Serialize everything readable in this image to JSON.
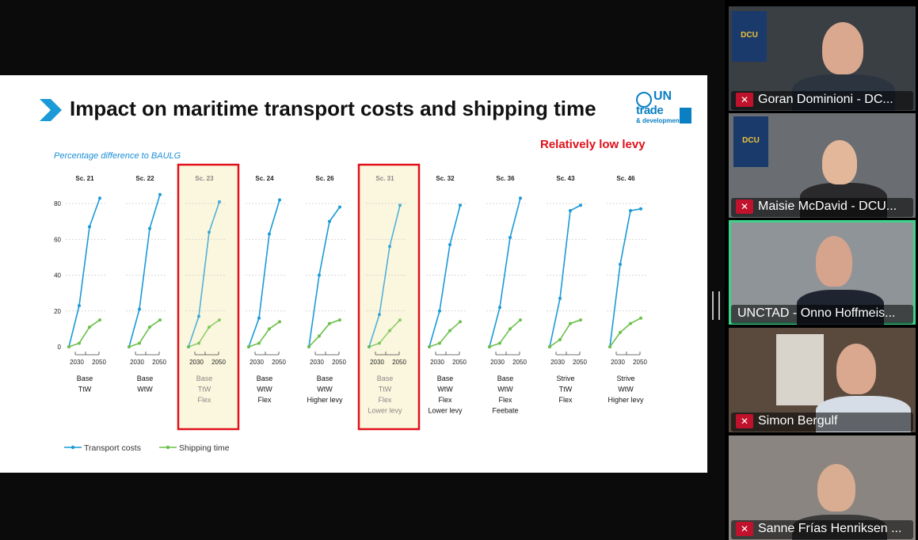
{
  "slide": {
    "title": "Impact on maritime transport costs and shipping time",
    "subtitle": "Percentage difference to BAULG",
    "levy_label": "Relatively low levy",
    "logo": {
      "line1": "UN",
      "line2": "trade",
      "line3": "& development"
    },
    "legend": {
      "transport": "Transport costs",
      "shipping": "Shipping time"
    },
    "highlight_color": "#e0101a",
    "transport_color": "#1a9ad6",
    "shipping_color": "#6cc04a"
  },
  "chart_data": {
    "type": "line",
    "ylim": [
      0,
      85
    ],
    "yticks": [
      "80",
      "60",
      "40",
      "20",
      "0"
    ],
    "x": [
      "",
      "2030",
      "",
      "2050"
    ],
    "xtick_labels": [
      "2030",
      "2050"
    ],
    "panels": [
      {
        "scenario": "Sc. 21",
        "labels": [
          "Base",
          "TtW"
        ],
        "highlight": false,
        "transport": [
          0,
          23,
          67,
          83
        ],
        "shipping": [
          0,
          2,
          11,
          15
        ]
      },
      {
        "scenario": "Sc. 22",
        "labels": [
          "Base",
          "WtW"
        ],
        "highlight": false,
        "transport": [
          0,
          21,
          66,
          85
        ],
        "shipping": [
          0,
          2,
          11,
          15
        ]
      },
      {
        "scenario": "Sc. 23",
        "labels": [
          "Base",
          "TtW",
          "Flex"
        ],
        "highlight": true,
        "transport": [
          0,
          17,
          64,
          81
        ],
        "shipping": [
          0,
          2,
          11,
          15
        ]
      },
      {
        "scenario": "Sc. 24",
        "labels": [
          "Base",
          "WtW",
          "Flex"
        ],
        "highlight": false,
        "transport": [
          0,
          16,
          63,
          82
        ],
        "shipping": [
          0,
          2,
          10,
          14
        ]
      },
      {
        "scenario": "Sc. 26",
        "labels": [
          "Base",
          "WtW",
          "Higher levy"
        ],
        "highlight": false,
        "transport": [
          0,
          40,
          70,
          78
        ],
        "shipping": [
          0,
          6,
          13,
          15
        ]
      },
      {
        "scenario": "Sc. 31",
        "labels": [
          "Base",
          "TtW",
          "Flex",
          "Lower levy"
        ],
        "highlight": true,
        "transport": [
          0,
          18,
          56,
          79
        ],
        "shipping": [
          0,
          2,
          9,
          15
        ]
      },
      {
        "scenario": "Sc. 32",
        "labels": [
          "Base",
          "WtW",
          "Flex",
          "Lower levy"
        ],
        "highlight": false,
        "transport": [
          0,
          20,
          57,
          79
        ],
        "shipping": [
          0,
          2,
          9,
          14
        ]
      },
      {
        "scenario": "Sc. 36",
        "labels": [
          "Base",
          "WtW",
          "Flex",
          "Feebate"
        ],
        "highlight": false,
        "transport": [
          0,
          22,
          61,
          83
        ],
        "shipping": [
          0,
          2,
          10,
          15
        ]
      },
      {
        "scenario": "Sc. 43",
        "labels": [
          "Strive",
          "TtW",
          "Flex"
        ],
        "highlight": false,
        "transport": [
          0,
          27,
          76,
          79
        ],
        "shipping": [
          0,
          4,
          13,
          15
        ]
      },
      {
        "scenario": "Sc. 46",
        "labels": [
          "Strive",
          "WtW",
          "Higher levy"
        ],
        "highlight": false,
        "transport": [
          0,
          46,
          76,
          77
        ],
        "shipping": [
          0,
          8,
          13,
          16
        ]
      }
    ]
  },
  "participants": [
    {
      "name": "Goran Dominioni - DC...",
      "muted": true,
      "active": false
    },
    {
      "name": "Maisie McDavid - DCU...",
      "muted": true,
      "active": false
    },
    {
      "name": "UNCTAD - Onno Hoffmeis...",
      "muted": false,
      "active": true
    },
    {
      "name": "Simon Bergulf",
      "muted": true,
      "active": false
    },
    {
      "name": "Sanne Frías Henriksen ...",
      "muted": true,
      "active": false
    }
  ]
}
